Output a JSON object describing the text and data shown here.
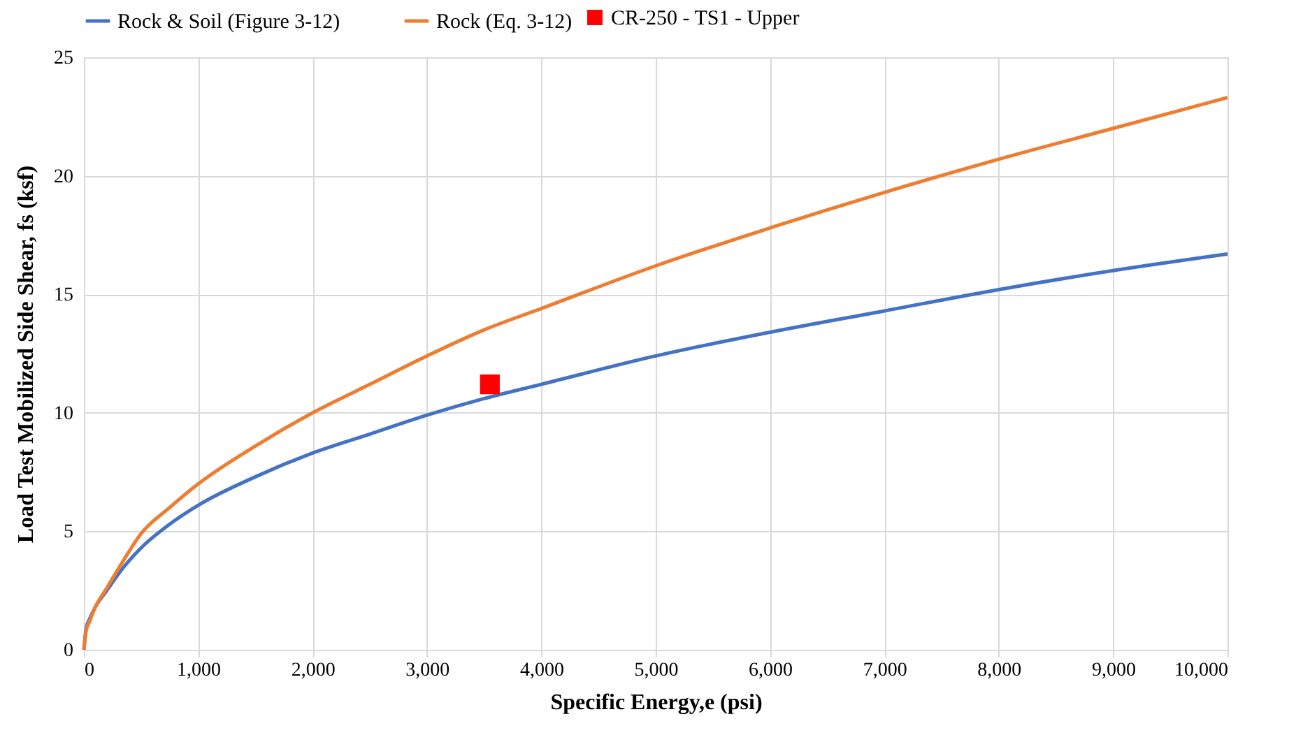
{
  "chart_data": {
    "type": "line",
    "xlabel": "Specific Energy,e (psi)",
    "ylabel": "Load Test Mobilized Side Shear, fs (ksf)",
    "xlim": [
      0,
      10000
    ],
    "xticks": [
      {
        "value": 0,
        "label": "0"
      },
      {
        "value": 1000,
        "label": "1,000"
      },
      {
        "value": 2000,
        "label": "2,000"
      },
      {
        "value": 3000,
        "label": "3,000"
      },
      {
        "value": 4000,
        "label": "4,000"
      },
      {
        "value": 5000,
        "label": "5,000"
      },
      {
        "value": 6000,
        "label": "6,000"
      },
      {
        "value": 7000,
        "label": "7,000"
      },
      {
        "value": 8000,
        "label": "8,000"
      },
      {
        "value": 9000,
        "label": "9,000"
      },
      {
        "value": 10000,
        "label": "10,000"
      }
    ],
    "ylim": [
      0,
      25
    ],
    "yticks": [
      0,
      5,
      10,
      15,
      20,
      25
    ],
    "grid": true,
    "legend": "top",
    "series": [
      {
        "name": "Rock & Soil (Figure 3-12)",
        "color": "#4472c4",
        "x": [
          0,
          20,
          50,
          100,
          200,
          350,
          500,
          750,
          1000,
          1500,
          2000,
          2500,
          3000,
          3500,
          4000,
          5000,
          6000,
          7000,
          8000,
          9000,
          10000
        ],
        "values": [
          0,
          0.9,
          1.3,
          1.8,
          2.5,
          3.5,
          4.3,
          5.3,
          6.1,
          7.3,
          8.3,
          9.1,
          9.9,
          10.6,
          11.2,
          12.4,
          13.4,
          14.3,
          15.2,
          16.0,
          16.7
        ]
      },
      {
        "name": "Rock (Eq. 3-12)",
        "color": "#ed7d31",
        "x": [
          0,
          20,
          50,
          100,
          200,
          350,
          500,
          750,
          1000,
          1500,
          2000,
          2500,
          3000,
          3500,
          4000,
          5000,
          6000,
          7000,
          8000,
          9000,
          10000
        ],
        "values": [
          0,
          0.8,
          1.2,
          1.8,
          2.6,
          3.8,
          4.9,
          6.0,
          7.0,
          8.6,
          10.0,
          11.2,
          12.4,
          13.5,
          14.4,
          16.2,
          17.8,
          19.3,
          20.7,
          22.0,
          23.3
        ]
      },
      {
        "name": "CR-250 - TS1 - Upper",
        "color": "#ff0000",
        "type": "scatter",
        "marker": "square",
        "x": [
          3550
        ],
        "values": [
          11.2
        ]
      }
    ]
  }
}
